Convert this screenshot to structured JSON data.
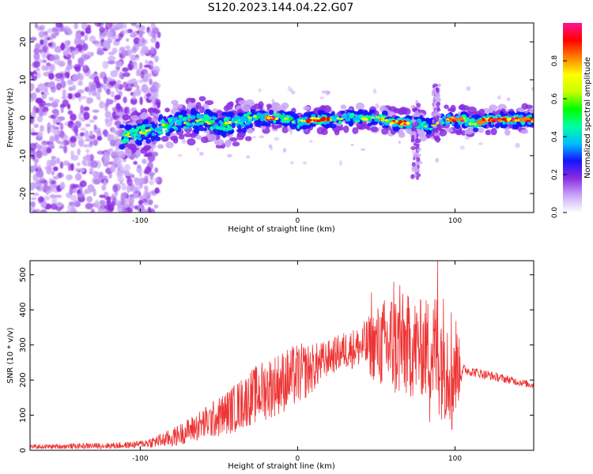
{
  "figure": {
    "title": "S120.2023.144.04.22.G07"
  },
  "chart_data": [
    {
      "type": "heatmap",
      "title": "S120.2023.144.04.22.G07",
      "xlabel": "Height of straight line (km)",
      "ylabel": "Frequency (Hz)",
      "xlim": [
        -170,
        150
      ],
      "ylim": [
        -25,
        25
      ],
      "x_ticks": [
        -100,
        0,
        100
      ],
      "y_ticks": [
        -20,
        -10,
        0,
        10,
        20
      ],
      "colorbar": {
        "label": "Normalized spectral amplitude",
        "range": [
          0,
          1
        ],
        "ticks": [
          0.0,
          0.2,
          0.4,
          0.6,
          0.8
        ],
        "tick_labels": [
          "0.0",
          "0.2",
          "0.4",
          "0.6",
          "0.8"
        ],
        "colormap": [
          "#ffffff",
          "#c9a6f6",
          "#8a2be2",
          "#1414ff",
          "#00bfff",
          "#00ffa0",
          "#00ff00",
          "#c8ff00",
          "#ffff00",
          "#ff8000",
          "#ff0000",
          "#ff1493"
        ]
      },
      "ridge": {
        "x": [
          -112,
          -100,
          -90,
          -80,
          -70,
          -60,
          -50,
          -40,
          -30,
          -20,
          -10,
          -5,
          0,
          5,
          10,
          20,
          25,
          30,
          40,
          50,
          60,
          70,
          75,
          80,
          85,
          90,
          95,
          105,
          110,
          115,
          120,
          130,
          140,
          150
        ],
        "y": [
          -5,
          -4,
          -3,
          -1.5,
          -1,
          -0.5,
          -2,
          -1.5,
          0,
          0,
          0,
          -0.3,
          -1.5,
          -1,
          -0.5,
          -0.5,
          -0.5,
          0,
          0,
          0,
          -1,
          -1.5,
          -1.5,
          -2,
          -2.5,
          -1,
          -0.5,
          -0.5,
          -1.5,
          -1.5,
          -0.5,
          -0.5,
          -0.5,
          -0.5
        ]
      },
      "strong_segments_x": [
        [
          -20,
          -15
        ],
        [
          5,
          20
        ],
        [
          60,
          70
        ],
        [
          95,
          105
        ],
        [
          115,
          150
        ]
      ]
    },
    {
      "type": "line",
      "xlabel": "Height of straight line (km)",
      "ylabel": "SNR (10 * v/v)",
      "xlim": [
        -170,
        150
      ],
      "ylim": [
        0,
        540
      ],
      "x_ticks": [
        -100,
        0,
        100
      ],
      "y_ticks": [
        0,
        100,
        200,
        300,
        400,
        500
      ],
      "color": "#ee3333",
      "envelope": {
        "x": [
          -170,
          -140,
          -110,
          -100,
          -90,
          -80,
          -70,
          -60,
          -50,
          -40,
          -30,
          -20,
          -10,
          0,
          10,
          20,
          30,
          40,
          50,
          60,
          70,
          80,
          90,
          95,
          100,
          102,
          110,
          120,
          130,
          140,
          150
        ],
        "y": [
          10,
          12,
          14,
          18,
          25,
          35,
          55,
          75,
          95,
          120,
          150,
          175,
          195,
          215,
          235,
          265,
          285,
          295,
          300,
          300,
          295,
          290,
          280,
          260,
          245,
          235,
          225,
          215,
          205,
          195,
          185
        ]
      },
      "noise_amplitude": {
        "x": [
          -170,
          -100,
          -70,
          -40,
          -20,
          0,
          20,
          40,
          50,
          60,
          70,
          80,
          90,
          100,
          105,
          150
        ],
        "y": [
          6,
          10,
          35,
          70,
          90,
          90,
          50,
          60,
          110,
          160,
          150,
          140,
          190,
          170,
          15,
          10
        ]
      },
      "spikes": [
        {
          "x": 89,
          "y": 540
        },
        {
          "x": 61,
          "y": 480
        },
        {
          "x": 47,
          "y": 450
        },
        {
          "x": 65,
          "y": 470
        },
        {
          "x": 84,
          "y": 80
        },
        {
          "x": 98,
          "y": 60
        }
      ]
    }
  ]
}
